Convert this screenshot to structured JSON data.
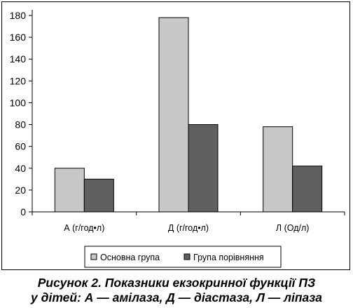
{
  "chart_data": {
    "type": "bar",
    "categories": [
      "А (г/год•л)",
      "Д (г/год•л)",
      "Л (Од/л)"
    ],
    "series": [
      {
        "name": "Основна група",
        "values": [
          40,
          178,
          78
        ],
        "color": "#c8c8c8"
      },
      {
        "name": "Група порівняння",
        "values": [
          30,
          80,
          42
        ],
        "color": "#606060"
      }
    ],
    "ylim": [
      0,
      180
    ],
    "yticks": [
      0,
      20,
      40,
      60,
      80,
      100,
      120,
      140,
      160,
      180
    ],
    "grid": false,
    "legend_position": "bottom"
  },
  "caption": {
    "line1": "Рисунок 2. Показники екзокринної функції ПЗ",
    "line2": "у дітей: А — амілаза, Д — діастаза, Л — ліпаза"
  }
}
